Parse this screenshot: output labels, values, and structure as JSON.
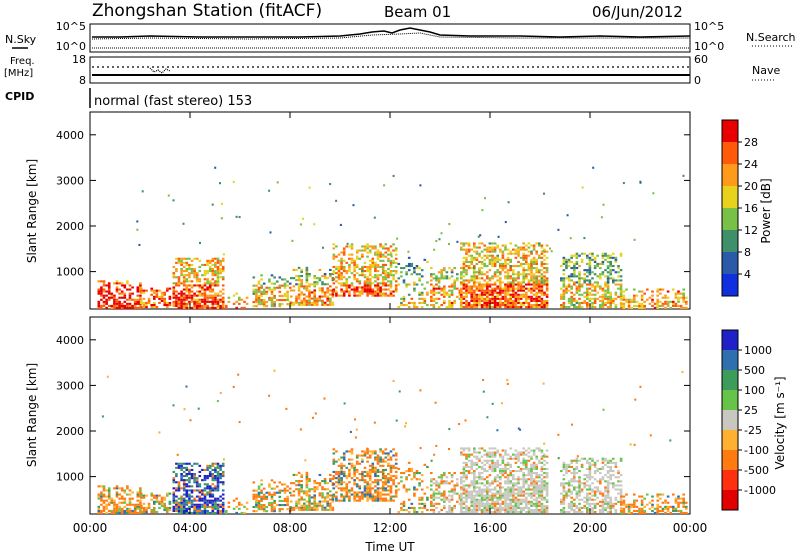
{
  "header": {
    "station": "Zhongshan Station (fitACF)",
    "beam": "Beam 01",
    "date": "06/Jun/2012"
  },
  "noise_panel": {
    "left_label": "N.Sky",
    "right_label": "N.Search",
    "ticks_left": [
      "10^5",
      "10^0"
    ],
    "ticks_right": [
      "10^5",
      "10^0"
    ]
  },
  "freq_panel": {
    "left_label_line1": "Freq.",
    "left_label_line2": "[MHz]",
    "right_label": "Nave",
    "ticks_left": [
      "18",
      "8"
    ],
    "ticks_right": [
      "60",
      "0"
    ]
  },
  "cpid": {
    "label": "CPID",
    "value": "normal (fast stereo) 153"
  },
  "chart_data": [
    {
      "type": "heatmap",
      "name": "power",
      "xlabel": "",
      "ylabel": "Slant Range [km]",
      "xlim": [
        0,
        24
      ],
      "ylim": [
        180,
        4500
      ],
      "yticks": [
        "1000",
        "2000",
        "3000",
        "4000"
      ],
      "colorbar_label": "Power [dB]",
      "colorbar_ticks": [
        "4",
        "8",
        "12",
        "16",
        "20",
        "24",
        "28"
      ],
      "colorbar_colors": [
        "#1030e0",
        "#2a5aa8",
        "#3f8f6a",
        "#78c046",
        "#e8d21e",
        "#ff9a1a",
        "#ff5a0a",
        "#e80000"
      ],
      "clim": [
        0,
        30
      ]
    },
    {
      "type": "heatmap",
      "name": "velocity",
      "xlabel": "Time UT",
      "ylabel": "Slant Range [km]",
      "xlim": [
        0,
        24
      ],
      "ylim": [
        180,
        4500
      ],
      "xticks": [
        "00:00",
        "04:00",
        "08:00",
        "12:00",
        "16:00",
        "20:00",
        "00:00"
      ],
      "yticks": [
        "1000",
        "2000",
        "3000",
        "4000"
      ],
      "colorbar_label": "Velocity [m s⁻¹]",
      "colorbar_ticks": [
        "1000",
        "500",
        "100",
        "25",
        "-25",
        "-100",
        "-500",
        "-1000"
      ],
      "colorbar_colors": [
        "#2020c8",
        "#2f6fb0",
        "#3e9c5a",
        "#66c44a",
        "#c8c8c0",
        "#ffb030",
        "#ff7a10",
        "#ff3010",
        "#e00000"
      ]
    }
  ]
}
